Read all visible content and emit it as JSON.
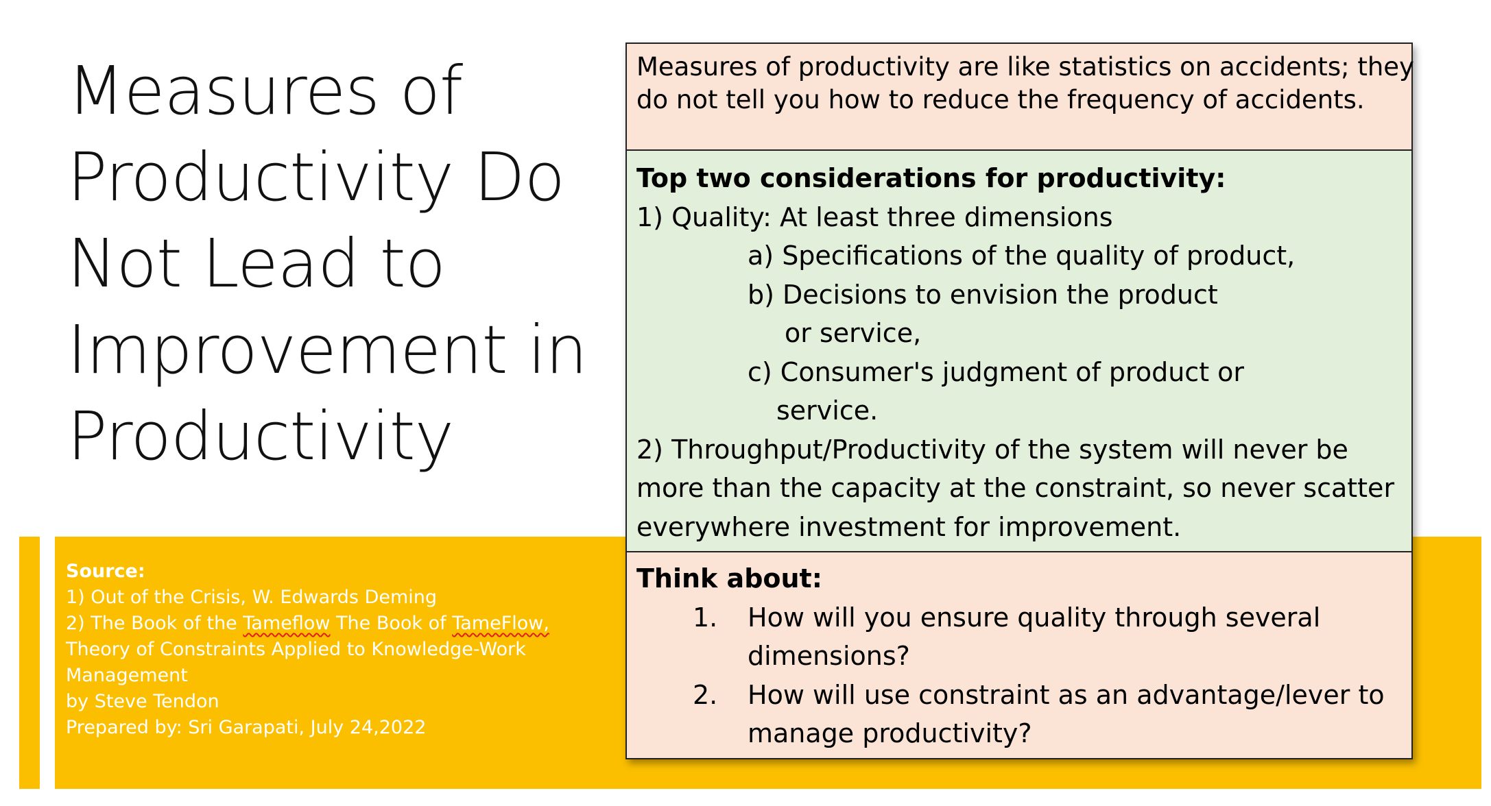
{
  "title_lines": [
    "Measures of",
    "Productivity Do",
    "Not Lead to",
    "Improvement in",
    "Productivity"
  ],
  "quote_lines": [
    "Measures of productivity are like statistics on accidents; they",
    "do not tell you how to reduce the frequency of accidents."
  ],
  "considerations": {
    "heading": "Top two considerations for productivity:",
    "q1": "1) Quality: At least three dimensions",
    "a": "a) Specifications of the quality of product,",
    "b1": "b) Decisions to envision the product",
    "b2": "or service,",
    "c1": "c) Consumer's judgment of product or",
    "c2": "service.",
    "q2_lines": [
      "2) Throughput/Productivity of the system will never be",
      "more than the capacity at the constraint, so never scatter",
      "everywhere investment for improvement."
    ]
  },
  "think": {
    "heading": "Think about:",
    "items": [
      {
        "num": "1.",
        "line1": "How will you ensure quality through several",
        "line2": "dimensions?"
      },
      {
        "num": "2.",
        "line1": "How will use constraint as an advantage/lever to",
        "line2": "manage productivity?"
      }
    ]
  },
  "source": {
    "heading": "Source:",
    "line1": "1) Out of the Crisis, W. Edwards Deming",
    "line2_a": "2) The Book of the ",
    "line2_b": "Tameflow",
    "line2_c": " The Book of ",
    "line2_d": "TameFlow,",
    "line3": "Theory of Constraints Applied to Knowledge-Work",
    "line4": "Management",
    "line5": "by Steve Tendon",
    "line6": "Prepared by: Sri Garapati, July 24,2022"
  },
  "colors": {
    "band": "#fbbf00",
    "pink_box": "#fbe3d6",
    "green_box": "#e2efda"
  }
}
